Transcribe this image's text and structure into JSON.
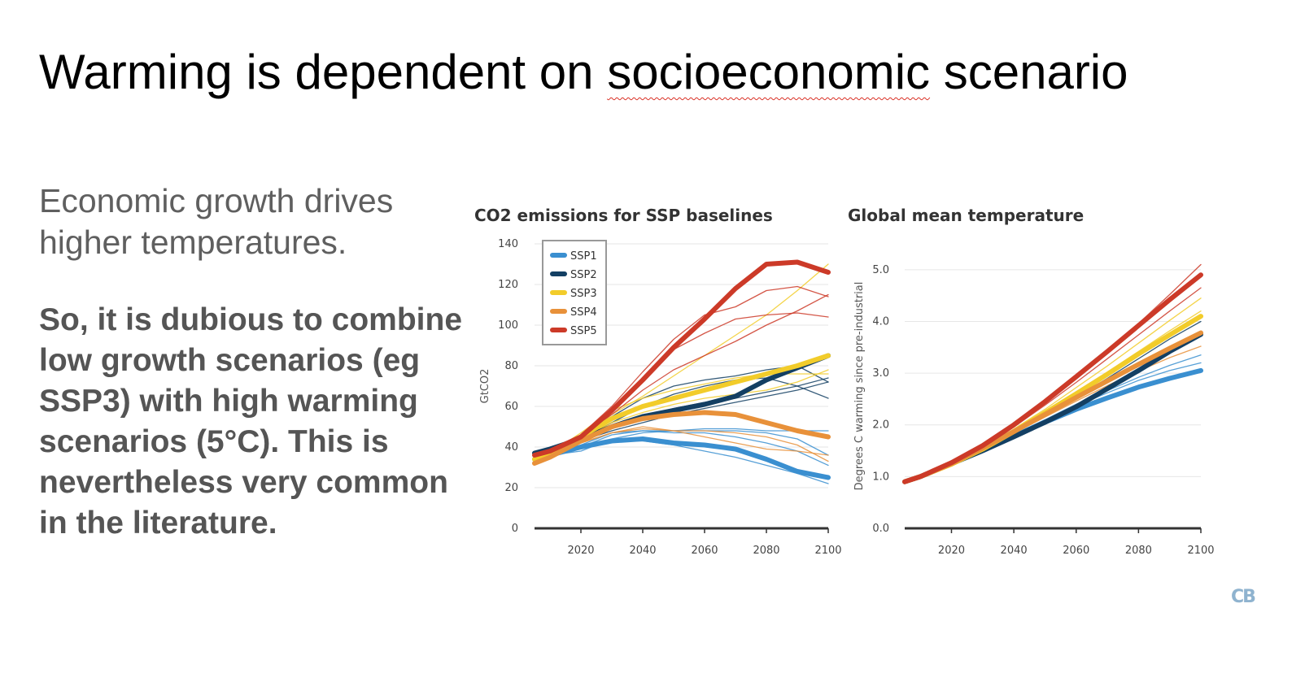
{
  "slide": {
    "title_before": "Warming is dependent on ",
    "title_misspelled": "socioeconomic",
    "title_after": " scenario",
    "intro": "Economic growth drives higher temperatures.",
    "argument": "So, it is dubious to combine low growth scenarios (eg SSP3) with high warming scenarios (5°C). This is nevertheless very common in the literature.",
    "logo": "CB"
  },
  "colors": {
    "SSP1": "#3a8fd0",
    "SSP2": "#133f63",
    "SSP3": "#f2cc2a",
    "SSP4": "#e8913a",
    "SSP5": "#cc3a28",
    "grid": "#e6e6e6",
    "axis": "#333333",
    "text": "#444444"
  },
  "chart_data": [
    {
      "type": "line",
      "title": "CO2 emissions for SSP baselines",
      "xlabel": "",
      "ylabel": "GtCO2",
      "xlim": [
        2005,
        2100
      ],
      "ylim": [
        0,
        140
      ],
      "xticks": [
        "2020",
        "2040",
        "2060",
        "2080",
        "2100"
      ],
      "xtick_values": [
        2020,
        2040,
        2060,
        2080,
        2100
      ],
      "yticks": [
        "0",
        "20",
        "40",
        "60",
        "80",
        "100",
        "120",
        "140"
      ],
      "ytick_values": [
        0,
        20,
        40,
        60,
        80,
        100,
        120,
        140
      ],
      "grid": true,
      "legend": {
        "position": "top-left",
        "entries": [
          "SSP1",
          "SSP2",
          "SSP3",
          "SSP4",
          "SSP5"
        ]
      },
      "x": [
        2005,
        2010,
        2020,
        2030,
        2040,
        2050,
        2060,
        2070,
        2080,
        2090,
        2100
      ],
      "series": [
        {
          "name": "SSP1",
          "group": "SSP1",
          "marker": true,
          "values": [
            34,
            36,
            40,
            43,
            44,
            42,
            41,
            39,
            34,
            28,
            25
          ]
        },
        {
          "name": "SSP1 model a",
          "group": "SSP1",
          "marker": false,
          "values": [
            34,
            36,
            38,
            44,
            47,
            48,
            49,
            49,
            48,
            48,
            48
          ]
        },
        {
          "name": "SSP1 model b",
          "group": "SSP1",
          "marker": false,
          "values": [
            34,
            36,
            40,
            46,
            48,
            47,
            47,
            45,
            42,
            38,
            31
          ]
        },
        {
          "name": "SSP1 model c",
          "group": "SSP1",
          "marker": false,
          "values": [
            34,
            36,
            40,
            43,
            43,
            41,
            38,
            35,
            31,
            27,
            22
          ]
        },
        {
          "name": "SSP1 model d",
          "group": "SSP1",
          "marker": false,
          "values": [
            34,
            36,
            41,
            47,
            48,
            48,
            48,
            48,
            47,
            44,
            36
          ]
        },
        {
          "name": "SSP2",
          "group": "SSP2",
          "marker": true,
          "values": [
            37,
            39,
            44,
            50,
            55,
            58,
            61,
            65,
            73,
            79,
            85
          ]
        },
        {
          "name": "SSP2 model a",
          "group": "SSP2",
          "marker": false,
          "values": [
            37,
            39,
            44,
            52,
            60,
            66,
            70,
            73,
            74,
            70,
            64
          ]
        },
        {
          "name": "SSP2 model b",
          "group": "SSP2",
          "marker": false,
          "values": [
            37,
            39,
            44,
            50,
            55,
            59,
            62,
            64,
            67,
            70,
            74
          ]
        },
        {
          "name": "SSP2 model c",
          "group": "SSP2",
          "marker": false,
          "values": [
            37,
            39,
            45,
            55,
            64,
            70,
            73,
            75,
            78,
            80,
            72
          ]
        },
        {
          "name": "SSP2 model d",
          "group": "SSP2",
          "marker": false,
          "values": [
            37,
            39,
            43,
            48,
            52,
            56,
            59,
            62,
            65,
            68,
            72
          ]
        },
        {
          "name": "SSP3",
          "group": "SSP3",
          "marker": true,
          "values": [
            34,
            37,
            45,
            54,
            60,
            64,
            68,
            72,
            76,
            80,
            85
          ]
        },
        {
          "name": "SSP3 model a",
          "group": "SSP3",
          "marker": false,
          "values": [
            34,
            37,
            47,
            58,
            64,
            68,
            71,
            74,
            76,
            76,
            76
          ]
        },
        {
          "name": "SSP3 model b",
          "group": "SSP3",
          "marker": false,
          "values": [
            34,
            37,
            44,
            52,
            57,
            61,
            64,
            66,
            68,
            72,
            78
          ]
        },
        {
          "name": "SSP3 model c",
          "group": "SSP3",
          "marker": false,
          "values": [
            34,
            37,
            46,
            56,
            65,
            75,
            85,
            95,
            105,
            117,
            130
          ]
        },
        {
          "name": "SSP4",
          "group": "SSP4",
          "marker": true,
          "values": [
            32,
            35,
            43,
            50,
            54,
            56,
            57,
            56,
            52,
            48,
            45
          ]
        },
        {
          "name": "SSP4 model a",
          "group": "SSP4",
          "marker": false,
          "values": [
            32,
            35,
            42,
            47,
            50,
            48,
            45,
            42,
            39,
            38,
            36
          ]
        },
        {
          "name": "SSP4 model b",
          "group": "SSP4",
          "marker": false,
          "values": [
            32,
            35,
            42,
            47,
            49,
            48,
            48,
            47,
            45,
            41,
            33
          ]
        },
        {
          "name": "SSP5",
          "group": "SSP5",
          "marker": true,
          "values": [
            36,
            38,
            45,
            58,
            73,
            89,
            103,
            118,
            130,
            131,
            126
          ]
        },
        {
          "name": "SSP5 model a",
          "group": "SSP5",
          "marker": false,
          "values": [
            36,
            38,
            46,
            58,
            72,
            88,
            96,
            103,
            105,
            106,
            104
          ]
        },
        {
          "name": "SSP5 model b",
          "group": "SSP5",
          "marker": false,
          "values": [
            36,
            38,
            46,
            60,
            77,
            93,
            105,
            109,
            117,
            119,
            114
          ]
        },
        {
          "name": "SSP5 model c",
          "group": "SSP5",
          "marker": false,
          "values": [
            36,
            38,
            45,
            56,
            68,
            78,
            85,
            92,
            100,
            107,
            115
          ]
        }
      ]
    },
    {
      "type": "line",
      "title": "Global mean temperature",
      "xlabel": "",
      "ylabel": "Degrees C warming since pre-industrial",
      "xlim": [
        2005,
        2100
      ],
      "ylim": [
        0,
        5.5
      ],
      "xticks": [
        "2020",
        "2040",
        "2060",
        "2080",
        "2100"
      ],
      "xtick_values": [
        2020,
        2040,
        2060,
        2080,
        2100
      ],
      "yticks": [
        "0.0",
        "1.0",
        "2.0",
        "3.0",
        "4.0",
        "5.0"
      ],
      "ytick_values": [
        0,
        1,
        2,
        3,
        4,
        5
      ],
      "grid": true,
      "x": [
        2005,
        2010,
        2020,
        2030,
        2040,
        2050,
        2060,
        2070,
        2080,
        2090,
        2100
      ],
      "series": [
        {
          "name": "SSP1",
          "group": "SSP1",
          "marker": true,
          "values": [
            0.9,
            1.0,
            1.25,
            1.5,
            1.78,
            2.05,
            2.3,
            2.52,
            2.73,
            2.9,
            3.05
          ]
        },
        {
          "name": "SSP1 model a",
          "group": "SSP1",
          "marker": false,
          "values": [
            0.9,
            1.0,
            1.25,
            1.52,
            1.82,
            2.1,
            2.4,
            2.66,
            2.92,
            3.15,
            3.35
          ]
        },
        {
          "name": "SSP1 model b",
          "group": "SSP1",
          "marker": false,
          "values": [
            0.9,
            1.0,
            1.25,
            1.52,
            1.8,
            2.08,
            2.36,
            2.62,
            2.86,
            3.05,
            3.2
          ]
        },
        {
          "name": "SSP2",
          "group": "SSP2",
          "marker": true,
          "values": [
            0.9,
            1.0,
            1.25,
            1.5,
            1.77,
            2.05,
            2.35,
            2.7,
            3.05,
            3.42,
            3.75
          ]
        },
        {
          "name": "SSP2 model a",
          "group": "SSP2",
          "marker": false,
          "values": [
            0.9,
            1.0,
            1.27,
            1.56,
            1.88,
            2.22,
            2.58,
            2.96,
            3.34,
            3.72,
            4.1
          ]
        },
        {
          "name": "SSP2 model b",
          "group": "SSP2",
          "marker": false,
          "values": [
            0.9,
            1.0,
            1.26,
            1.54,
            1.86,
            2.18,
            2.54,
            2.9,
            3.28,
            3.66,
            4.0
          ]
        },
        {
          "name": "SSP3",
          "group": "SSP3",
          "marker": true,
          "values": [
            0.9,
            1.0,
            1.24,
            1.53,
            1.87,
            2.23,
            2.6,
            2.98,
            3.37,
            3.74,
            4.1
          ]
        },
        {
          "name": "SSP3 model a",
          "group": "SSP3",
          "marker": false,
          "values": [
            0.9,
            1.0,
            1.25,
            1.56,
            1.92,
            2.3,
            2.72,
            3.14,
            3.58,
            4.02,
            4.45
          ]
        },
        {
          "name": "SSP3 model b",
          "group": "SSP3",
          "marker": false,
          "values": [
            0.9,
            1.0,
            1.25,
            1.54,
            1.88,
            2.24,
            2.63,
            3.02,
            3.42,
            3.82,
            4.2
          ]
        },
        {
          "name": "SSP4",
          "group": "SSP4",
          "marker": true,
          "values": [
            0.9,
            1.0,
            1.25,
            1.55,
            1.87,
            2.2,
            2.53,
            2.85,
            3.17,
            3.48,
            3.78
          ]
        },
        {
          "name": "SSP4 model a",
          "group": "SSP4",
          "marker": false,
          "values": [
            0.9,
            1.0,
            1.25,
            1.53,
            1.84,
            2.15,
            2.46,
            2.76,
            3.04,
            3.3,
            3.52
          ]
        },
        {
          "name": "SSP5",
          "group": "SSP5",
          "marker": true,
          "values": [
            0.9,
            1.0,
            1.27,
            1.6,
            2.0,
            2.45,
            2.93,
            3.42,
            3.92,
            4.42,
            4.9
          ]
        },
        {
          "name": "SSP5 model a",
          "group": "SSP5",
          "marker": false,
          "values": [
            0.9,
            1.0,
            1.28,
            1.62,
            2.02,
            2.46,
            2.94,
            3.44,
            3.96,
            4.52,
            5.1
          ]
        },
        {
          "name": "SSP5 model b",
          "group": "SSP5",
          "marker": false,
          "values": [
            0.9,
            1.0,
            1.27,
            1.58,
            1.96,
            2.38,
            2.82,
            3.28,
            3.74,
            4.2,
            4.65
          ]
        }
      ]
    }
  ]
}
